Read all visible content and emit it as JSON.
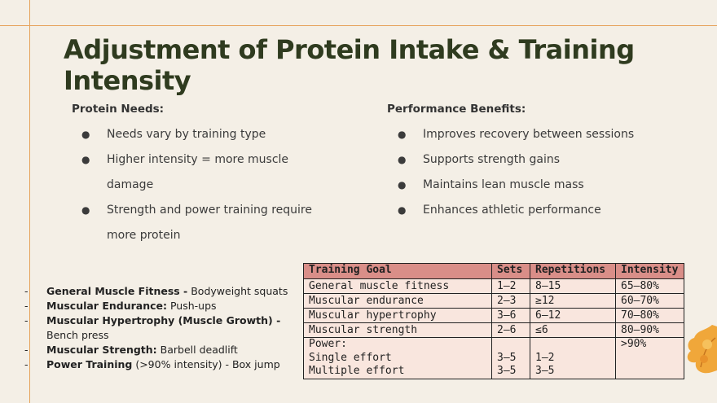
{
  "title": "Adjustment of Protein Intake & Training Intensity",
  "protein": {
    "heading": "Protein Needs:",
    "items": [
      "Needs vary by training type",
      "Higher intensity = more muscle damage",
      "Strength and power training require more protein"
    ]
  },
  "performance": {
    "heading": "Performance Benefits:",
    "items": [
      "Improves recovery between sessions",
      "Supports strength gains",
      "Maintains lean muscle mass",
      "Enhances athletic performance"
    ]
  },
  "examples": [
    {
      "bold": "General Muscle Fitness -",
      "rest": " Bodyweight squats"
    },
    {
      "bold": "Muscular Endurance:",
      "rest": " Push-ups"
    },
    {
      "bold": "Muscular Hypertrophy (Muscle Growth) -",
      "rest": " Bench press"
    },
    {
      "bold": "Muscular Strength:",
      "rest": " Barbell deadlift"
    },
    {
      "bold": "Power Training",
      "rest": " (>90% intensity) - Box jump"
    }
  ],
  "table": {
    "headers": [
      "Training Goal",
      "Sets",
      "Repetitions",
      "Intensity"
    ],
    "rows": [
      [
        "General muscle fitness",
        "1–2",
        "8–15",
        "65–80%"
      ],
      [
        "Muscular endurance",
        "2–3",
        "≥12",
        "60–70%"
      ],
      [
        "Muscular hypertrophy",
        "3–6",
        "6–12",
        "70–80%"
      ],
      [
        "Muscular strength",
        "2–6",
        "≤6",
        "80–90%"
      ]
    ],
    "power": {
      "goal": [
        "Power:",
        "Single effort",
        "Multiple effort"
      ],
      "sets": [
        "",
        "3–5",
        "3–5"
      ],
      "reps": [
        "",
        "1–2",
        "3–5"
      ],
      "intensity": ">90%"
    }
  },
  "colors": {
    "accent_line": "#e6a25a",
    "title": "#2f3b1f",
    "table_header": "#d98e88",
    "table_body": "#f9e6de"
  }
}
